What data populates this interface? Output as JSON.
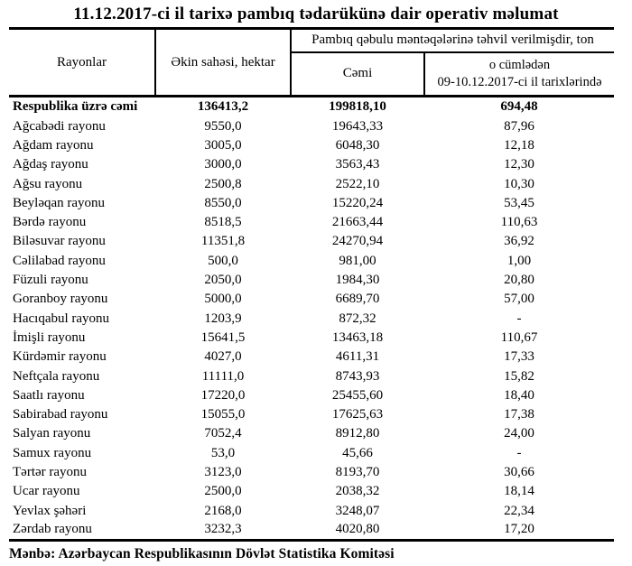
{
  "title": "11.12.2017-ci il tarixə pambıq tədarükünə dair operativ məlumat",
  "table": {
    "headers": {
      "rayonlar": "Rayonlar",
      "ekin_sahesi": "Əkin sahəsi, hektar",
      "tehvil_span": "Pambıq qəbulu məntəqələrinə təhvil verilmişdir, ton",
      "cemi": "Cəmi",
      "o_cumleden_line1": "o cümlədən",
      "o_cumleden_line2": "09-10.12.2017-ci il tarixlərində"
    },
    "total_row": {
      "name": "Respublika üzrə cəmi",
      "area": "136413,2",
      "total": "199818,10",
      "recent": "694,48"
    },
    "rows": [
      {
        "name": "Ağcabədi rayonu",
        "area": "9550,0",
        "total": "19643,33",
        "recent": "87,96"
      },
      {
        "name": "Ağdam rayonu",
        "area": "3005,0",
        "total": "6048,30",
        "recent": "12,18"
      },
      {
        "name": "Ağdaş rayonu",
        "area": "3000,0",
        "total": "3563,43",
        "recent": "12,30"
      },
      {
        "name": "Ağsu rayonu",
        "area": "2500,8",
        "total": "2522,10",
        "recent": "10,30"
      },
      {
        "name": "Beyləqan rayonu",
        "area": "8550,0",
        "total": "15220,24",
        "recent": "53,45"
      },
      {
        "name": "Bərdə rayonu",
        "area": "8518,5",
        "total": "21663,44",
        "recent": "110,63"
      },
      {
        "name": "Biləsuvar rayonu",
        "area": "11351,8",
        "total": "24270,94",
        "recent": "36,92"
      },
      {
        "name": "Cəlilabad rayonu",
        "area": "500,0",
        "total": "981,00",
        "recent": "1,00"
      },
      {
        "name": "Füzuli rayonu",
        "area": "2050,0",
        "total": "1984,30",
        "recent": "20,80"
      },
      {
        "name": "Goranboy rayonu",
        "area": "5000,0",
        "total": "6689,70",
        "recent": "57,00"
      },
      {
        "name": "Hacıqabul rayonu",
        "area": "1203,9",
        "total": "872,32",
        "recent": "-"
      },
      {
        "name": "İmişli rayonu",
        "area": "15641,5",
        "total": "13463,18",
        "recent": "110,67"
      },
      {
        "name": "Kürdəmir rayonu",
        "area": "4027,0",
        "total": "4611,31",
        "recent": "17,33"
      },
      {
        "name": "Neftçala rayonu",
        "area": "11111,0",
        "total": "8743,93",
        "recent": "15,82"
      },
      {
        "name": "Saatlı rayonu",
        "area": "17220,0",
        "total": "25455,60",
        "recent": "18,40"
      },
      {
        "name": "Sabirabad rayonu",
        "area": "15055,0",
        "total": "17625,63",
        "recent": "17,38"
      },
      {
        "name": "Salyan rayonu",
        "area": "7052,4",
        "total": "8912,80",
        "recent": "24,00"
      },
      {
        "name": "Samux rayonu",
        "area": "53,0",
        "total": "45,66",
        "recent": "-"
      },
      {
        "name": "Tərtər rayonu",
        "area": "3123,0",
        "total": "8193,70",
        "recent": "30,66"
      },
      {
        "name": "Ucar rayonu",
        "area": "2500,0",
        "total": "2038,32",
        "recent": "18,14"
      },
      {
        "name": "Yevlax şəhəri",
        "area": "2168,0",
        "total": "3248,07",
        "recent": "22,34"
      },
      {
        "name": "Zərdab rayonu",
        "area": "3232,3",
        "total": "4020,80",
        "recent": "17,20"
      }
    ]
  },
  "footer": "Mənbə: Azərbaycan Respublikasının Dövlət Statistika Komitəsi",
  "colors": {
    "text": "#000000",
    "background": "#ffffff",
    "border": "#000000"
  }
}
